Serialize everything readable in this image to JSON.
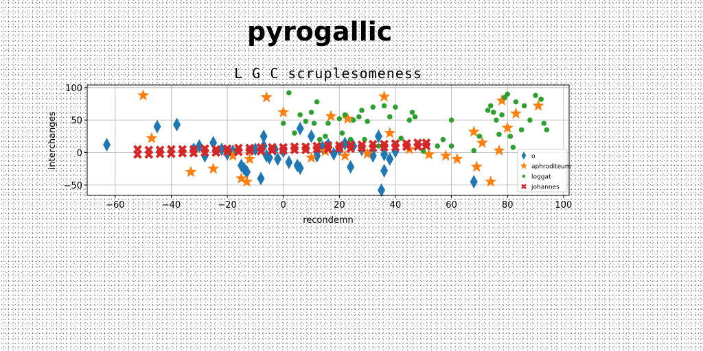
{
  "headline": "pyrogallic",
  "chart_data": {
    "type": "scatter",
    "title": "L G C scruplesomeness",
    "xlabel": "recondemn",
    "ylabel": "interchanges",
    "xlim": [
      -70,
      102
    ],
    "ylim": [
      -66,
      104
    ],
    "xticks": [
      -60,
      -40,
      -20,
      0,
      20,
      40,
      60,
      80,
      100
    ],
    "yticks": [
      -50,
      0,
      50,
      100
    ],
    "grid": true,
    "legend_position": "lower-right",
    "series": [
      {
        "name": "o",
        "marker": "diamond",
        "color": "#1f77b4",
        "points": [
          [
            -63,
            12
          ],
          [
            -45,
            40
          ],
          [
            -38,
            43
          ],
          [
            -32,
            5
          ],
          [
            -30,
            10
          ],
          [
            -28,
            -5
          ],
          [
            -25,
            15
          ],
          [
            -22,
            5
          ],
          [
            -20,
            -2
          ],
          [
            -18,
            2
          ],
          [
            -15,
            -20
          ],
          [
            -14,
            -25
          ],
          [
            -13,
            -30
          ],
          [
            -10,
            5
          ],
          [
            -8,
            -40
          ],
          [
            -7,
            25
          ],
          [
            -7,
            10
          ],
          [
            -6,
            -5
          ],
          [
            -5,
            -8
          ],
          [
            -3,
            5
          ],
          [
            -2,
            -10
          ],
          [
            0,
            2
          ],
          [
            2,
            -15
          ],
          [
            5,
            -20
          ],
          [
            6,
            -24
          ],
          [
            6,
            37
          ],
          [
            10,
            25
          ],
          [
            12,
            -5
          ],
          [
            14,
            8
          ],
          [
            16,
            12
          ],
          [
            18,
            -2
          ],
          [
            20,
            5
          ],
          [
            22,
            14
          ],
          [
            24,
            -22
          ],
          [
            25,
            10
          ],
          [
            28,
            5
          ],
          [
            32,
            -5
          ],
          [
            34,
            25
          ],
          [
            35,
            -58
          ],
          [
            36,
            -28
          ],
          [
            36,
            -3
          ],
          [
            38,
            -10
          ],
          [
            40,
            2
          ],
          [
            68,
            -45
          ]
        ]
      },
      {
        "name": "aphroditeum",
        "marker": "star",
        "color": "#ff7f0e",
        "points": [
          [
            -50,
            88
          ],
          [
            -47,
            22
          ],
          [
            -33,
            -30
          ],
          [
            -25,
            -25
          ],
          [
            -18,
            -5
          ],
          [
            -15,
            -40
          ],
          [
            -13,
            -45
          ],
          [
            -12,
            -10
          ],
          [
            -6,
            85
          ],
          [
            0,
            62
          ],
          [
            10,
            -8
          ],
          [
            15,
            2
          ],
          [
            17,
            56
          ],
          [
            22,
            -5
          ],
          [
            23,
            52
          ],
          [
            30,
            -2
          ],
          [
            36,
            86
          ],
          [
            38,
            30
          ],
          [
            45,
            5
          ],
          [
            52,
            -3
          ],
          [
            58,
            -5
          ],
          [
            62,
            -10
          ],
          [
            68,
            32
          ],
          [
            69,
            -22
          ],
          [
            71,
            15
          ],
          [
            74,
            -45
          ],
          [
            77,
            3
          ],
          [
            78,
            80
          ],
          [
            80,
            38
          ],
          [
            83,
            60
          ],
          [
            91,
            72
          ]
        ]
      },
      {
        "name": "loggat",
        "marker": "circle",
        "color": "#2ca02c",
        "points": [
          [
            0,
            45
          ],
          [
            2,
            92
          ],
          [
            4,
            30
          ],
          [
            6,
            58
          ],
          [
            8,
            48
          ],
          [
            10,
            62
          ],
          [
            11,
            45
          ],
          [
            12,
            78
          ],
          [
            13,
            20
          ],
          [
            15,
            25
          ],
          [
            16,
            45
          ],
          [
            20,
            52
          ],
          [
            21,
            30
          ],
          [
            22,
            58
          ],
          [
            24,
            20
          ],
          [
            25,
            50
          ],
          [
            27,
            55
          ],
          [
            28,
            65
          ],
          [
            29,
            20
          ],
          [
            30,
            48
          ],
          [
            32,
            70
          ],
          [
            34,
            10
          ],
          [
            36,
            72
          ],
          [
            38,
            55
          ],
          [
            40,
            70
          ],
          [
            42,
            22
          ],
          [
            45,
            50
          ],
          [
            46,
            62
          ],
          [
            47,
            55
          ],
          [
            50,
            2
          ],
          [
            55,
            10
          ],
          [
            57,
            20
          ],
          [
            60,
            50
          ],
          [
            60,
            10
          ],
          [
            68,
            3
          ],
          [
            70,
            25
          ],
          [
            73,
            65
          ],
          [
            74,
            72
          ],
          [
            75,
            62
          ],
          [
            76,
            50
          ],
          [
            77,
            28
          ],
          [
            78,
            58
          ],
          [
            79,
            85
          ],
          [
            80,
            90
          ],
          [
            81,
            25
          ],
          [
            82,
            8
          ],
          [
            83,
            78
          ],
          [
            85,
            35
          ],
          [
            86,
            72
          ],
          [
            88,
            50
          ],
          [
            90,
            88
          ],
          [
            92,
            82
          ],
          [
            93,
            45
          ],
          [
            94,
            35
          ]
        ]
      },
      {
        "name": "johannes",
        "marker": "x",
        "color": "#d62728",
        "points": [
          [
            -52,
            5
          ],
          [
            -48,
            4
          ],
          [
            -44,
            4
          ],
          [
            -40,
            5
          ],
          [
            -36,
            5
          ],
          [
            -32,
            5
          ],
          [
            -28,
            6
          ],
          [
            -24,
            5
          ],
          [
            -20,
            6
          ],
          [
            -16,
            7
          ],
          [
            -12,
            7
          ],
          [
            -8,
            8
          ],
          [
            -4,
            8
          ],
          [
            0,
            8
          ],
          [
            4,
            9
          ],
          [
            8,
            9
          ],
          [
            12,
            10
          ],
          [
            16,
            11
          ],
          [
            20,
            11
          ],
          [
            24,
            12
          ],
          [
            28,
            12
          ],
          [
            32,
            13
          ],
          [
            36,
            13
          ],
          [
            40,
            14
          ],
          [
            44,
            14
          ],
          [
            48,
            15
          ],
          [
            51,
            15
          ],
          [
            -52,
            -3
          ],
          [
            -48,
            -3
          ],
          [
            -44,
            -2
          ],
          [
            -40,
            -2
          ],
          [
            -36,
            -1
          ],
          [
            -32,
            -1
          ],
          [
            -28,
            0
          ],
          [
            -24,
            0
          ],
          [
            -20,
            1
          ],
          [
            -16,
            1
          ],
          [
            -12,
            2
          ],
          [
            -8,
            2
          ],
          [
            -4,
            3
          ],
          [
            0,
            3
          ],
          [
            4,
            4
          ],
          [
            8,
            4
          ],
          [
            12,
            5
          ],
          [
            16,
            5
          ],
          [
            20,
            6
          ],
          [
            24,
            6
          ],
          [
            28,
            7
          ],
          [
            32,
            7
          ],
          [
            36,
            8
          ],
          [
            40,
            8
          ],
          [
            44,
            9
          ],
          [
            48,
            9
          ],
          [
            51,
            10
          ]
        ]
      }
    ]
  }
}
